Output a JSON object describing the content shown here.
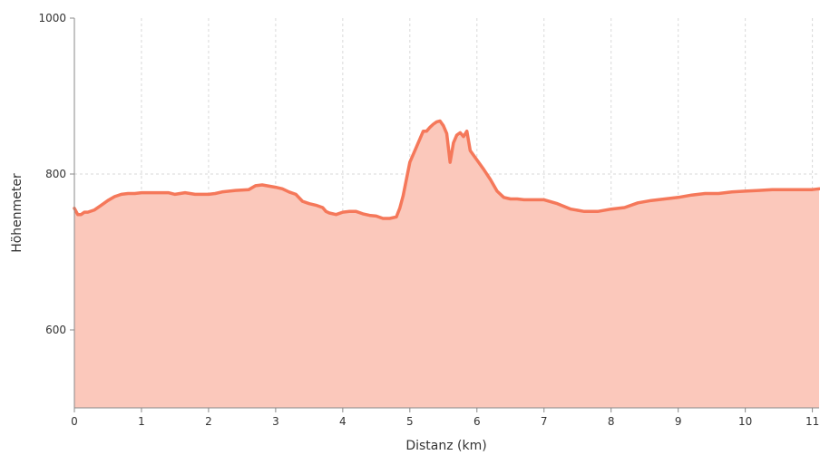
{
  "chart_data": {
    "type": "area",
    "title": "",
    "xlabel": "Distanz (km)",
    "ylabel": "Höhenmeter",
    "xlim": [
      0,
      11.1
    ],
    "ylim": [
      500,
      1000
    ],
    "x_ticks": [
      0,
      1,
      2,
      3,
      4,
      5,
      6,
      7,
      8,
      9,
      10,
      11
    ],
    "y_ticks": [
      600,
      800,
      1000
    ],
    "grid": true,
    "legend": "none",
    "colors": {
      "line": "#f5785a",
      "fill": "#fbc8bb",
      "grid": "#d9d9d9",
      "axis": "#888888"
    },
    "series": [
      {
        "x": [
          0,
          0.05,
          0.1,
          0.15,
          0.2,
          0.3,
          0.4,
          0.5,
          0.6,
          0.7,
          0.8,
          0.9,
          1.0,
          1.2,
          1.4,
          1.5,
          1.65,
          1.8,
          2.0,
          2.1,
          2.2,
          2.4,
          2.6,
          2.7,
          2.8,
          3.0,
          3.1,
          3.2,
          3.3,
          3.4,
          3.5,
          3.6,
          3.7,
          3.75,
          3.8,
          3.9,
          4.0,
          4.1,
          4.2,
          4.3,
          4.4,
          4.5,
          4.6,
          4.65,
          4.7,
          4.8,
          4.85,
          4.9,
          5.0,
          5.1,
          5.2,
          5.25,
          5.3,
          5.35,
          5.4,
          5.45,
          5.5,
          5.55,
          5.6,
          5.65,
          5.7,
          5.75,
          5.8,
          5.85,
          5.9,
          6.0,
          6.1,
          6.2,
          6.3,
          6.4,
          6.5,
          6.6,
          6.7,
          6.8,
          7.0,
          7.2,
          7.4,
          7.6,
          7.8,
          8.0,
          8.2,
          8.4,
          8.6,
          8.8,
          9.0,
          9.2,
          9.4,
          9.6,
          9.8,
          10.0,
          10.2,
          10.4,
          10.6,
          10.8,
          11.0,
          11.1
        ],
        "values": [
          756,
          748,
          748,
          751,
          751,
          754,
          760,
          766,
          771,
          774,
          775,
          775,
          776,
          776,
          776,
          774,
          776,
          774,
          774,
          775,
          777,
          779,
          780,
          785,
          786,
          783,
          781,
          777,
          774,
          765,
          762,
          760,
          757,
          752,
          750,
          748,
          751,
          752,
          752,
          749,
          747,
          746,
          743,
          743,
          743,
          745,
          756,
          772,
          815,
          835,
          855,
          855,
          860,
          864,
          867,
          868,
          862,
          852,
          815,
          840,
          850,
          853,
          848,
          855,
          830,
          818,
          806,
          793,
          778,
          770,
          768,
          768,
          767,
          767,
          767,
          762,
          755,
          752,
          752,
          755,
          757,
          763,
          766,
          768,
          770,
          773,
          775,
          775,
          777,
          778,
          779,
          780,
          780,
          780,
          780,
          781
        ]
      }
    ]
  }
}
